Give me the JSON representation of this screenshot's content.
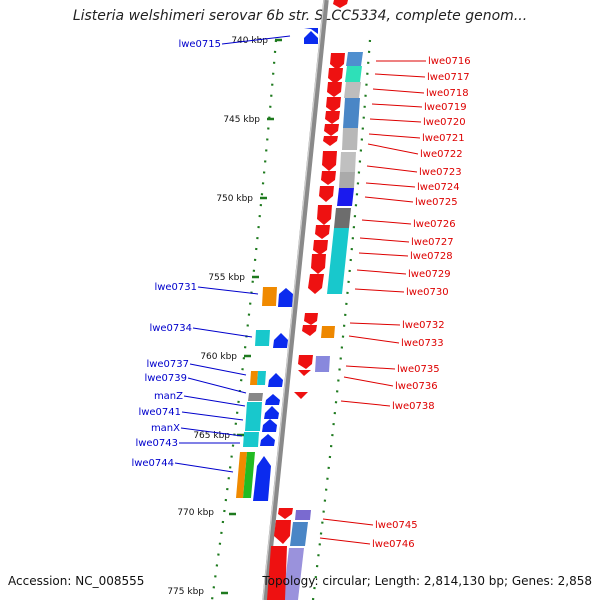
{
  "title": "Listeria welshimeri serovar 6b str. SLCC5334, complete genom...",
  "footer": {
    "accession": "Accession: NC_008555",
    "summary": "Topology: circular; Length: 2,814,130 bp; Genes: 2,858"
  },
  "colors": {
    "forward_label": "#0000cc",
    "reverse_label": "#dd0000",
    "backbone": "#8a8a8a",
    "tick": "#1e7a1e"
  },
  "scale": {
    "ticks": [
      {
        "kbp": 740,
        "label": "740 kbp"
      },
      {
        "kbp": 745,
        "label": "745 kbp"
      },
      {
        "kbp": 750,
        "label": "750 kbp"
      },
      {
        "kbp": 755,
        "label": "755 kbp"
      },
      {
        "kbp": 760,
        "label": "760 kbp"
      },
      {
        "kbp": 765,
        "label": "765 kbp"
      },
      {
        "kbp": 770,
        "label": "770 kbp"
      },
      {
        "kbp": 775,
        "label": "775 kbp"
      }
    ]
  },
  "genes": {
    "forward": [
      {
        "label": "lwe0715",
        "kbp": 739.9
      },
      {
        "label": "lwe0731",
        "kbp": 756.0
      },
      {
        "label": "lwe0734",
        "kbp": 758.3
      },
      {
        "label": "lwe0737",
        "kbp": 760.9
      },
      {
        "label": "lwe0739",
        "kbp": 761.6
      },
      {
        "label": "manZ",
        "kbp": 762.4
      },
      {
        "label": "lwe0741",
        "kbp": 763.3
      },
      {
        "label": "manX",
        "kbp": 764.1
      },
      {
        "label": "lwe0743",
        "kbp": 764.8
      },
      {
        "label": "lwe0744",
        "kbp": 766.6
      }
    ],
    "reverse": [
      {
        "label": "lwe0716",
        "kbp": 741.0
      },
      {
        "label": "lwe0717",
        "kbp": 741.8
      },
      {
        "label": "lwe0718",
        "kbp": 742.7
      },
      {
        "label": "lwe0719",
        "kbp": 743.5
      },
      {
        "label": "lwe0720",
        "kbp": 744.4
      },
      {
        "label": "lwe0721",
        "kbp": 745.2
      },
      {
        "label": "lwe0722",
        "kbp": 746.0
      },
      {
        "label": "lwe0723",
        "kbp": 747.0
      },
      {
        "label": "lwe0724",
        "kbp": 747.9
      },
      {
        "label": "lwe0725",
        "kbp": 748.9
      },
      {
        "label": "lwe0726",
        "kbp": 750.3
      },
      {
        "label": "lwe0727",
        "kbp": 751.4
      },
      {
        "label": "lwe0728",
        "kbp": 752.2
      },
      {
        "label": "lwe0729",
        "kbp": 753.3
      },
      {
        "label": "lwe0730",
        "kbp": 754.5
      },
      {
        "label": "lwe0732",
        "kbp": 757.1
      },
      {
        "label": "lwe0733",
        "kbp": 758.0
      },
      {
        "label": "lwe0735",
        "kbp": 760.3
      },
      {
        "label": "lwe0736",
        "kbp": 761.1
      },
      {
        "label": "lwe0738",
        "kbp": 762.3
      },
      {
        "label": "lwe0745",
        "kbp": 770.9
      },
      {
        "label": "lwe0746",
        "kbp": 772.0
      }
    ]
  }
}
